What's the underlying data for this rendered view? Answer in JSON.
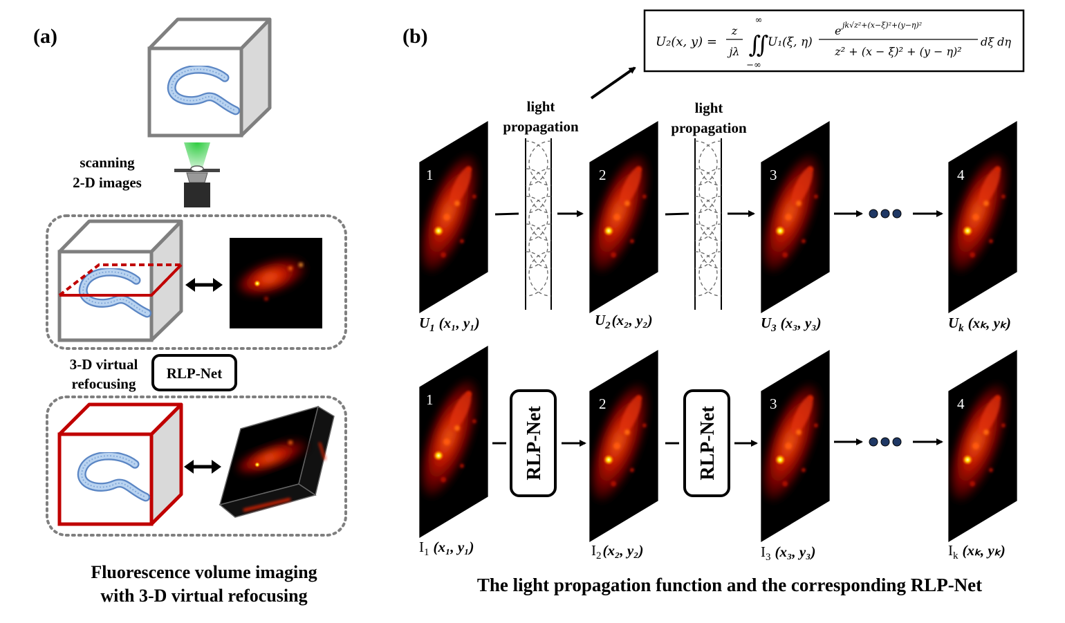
{
  "panel_a": {
    "label": "(a)",
    "scanning_line1": "scanning",
    "scanning_line2": "2-D images",
    "refocus_line1": "3-D virtual",
    "refocus_line2": "refocusing",
    "rlpnet_box": "RLP-Net",
    "caption_line1": "Fluorescence volume imaging",
    "caption_line2": "with 3-D virtual refocusing"
  },
  "panel_b": {
    "label": "(b)",
    "formula": {
      "lhs": "U₂(x, y) =",
      "frac_num": "z",
      "frac_den": "jλ",
      "int_upper": "∞",
      "int_lower": "−∞",
      "integral": "∬",
      "integrand": "U₁(ξ, η)",
      "exp_numer": "e",
      "exp_power": "jk√z²+(x−ξ)²+(y−η)²",
      "denominator": "z² + (x − ξ)² + (y − η)²",
      "differential": "dξ dη"
    },
    "propagation_labels": [
      {
        "line1": "light",
        "line2": "propagation"
      },
      {
        "line1": "light",
        "line2": "propagation"
      }
    ],
    "slice_numbers": [
      "1",
      "2",
      "3",
      "4"
    ],
    "top_row_labels": [
      {
        "sym": "U",
        "sub": "1",
        "args": "(x₁, y₁)"
      },
      {
        "sym": "U",
        "sub": "2",
        "args": "(x₂, y₂)"
      },
      {
        "sym": "U",
        "sub": "3",
        "args": "(x₃, y₃)"
      },
      {
        "sym": "U",
        "sub": "k",
        "args": "(xₖ, yₖ)"
      }
    ],
    "bottom_row_labels": [
      {
        "sym": "I",
        "sub": "1",
        "args": "(x₁, y₁)"
      },
      {
        "sym": "I",
        "sub": "2",
        "args": "(x₂, y₂)"
      },
      {
        "sym": "I",
        "sub": "3",
        "args": "(x₃, y₃)"
      },
      {
        "sym": "I",
        "sub": "k",
        "args": "(xₖ, yₖ)"
      }
    ],
    "net_labels": [
      "RLP-Net",
      "RLP-Net"
    ],
    "caption": "The light propagation function and the corresponding RLP-Net"
  },
  "colors": {
    "cube_gray": "#7f7f7f",
    "cube_side": "#d9d9d9",
    "highlight_red": "#c00000",
    "beam_green": "#2ecc40",
    "dot_navy": "#1f3864"
  }
}
